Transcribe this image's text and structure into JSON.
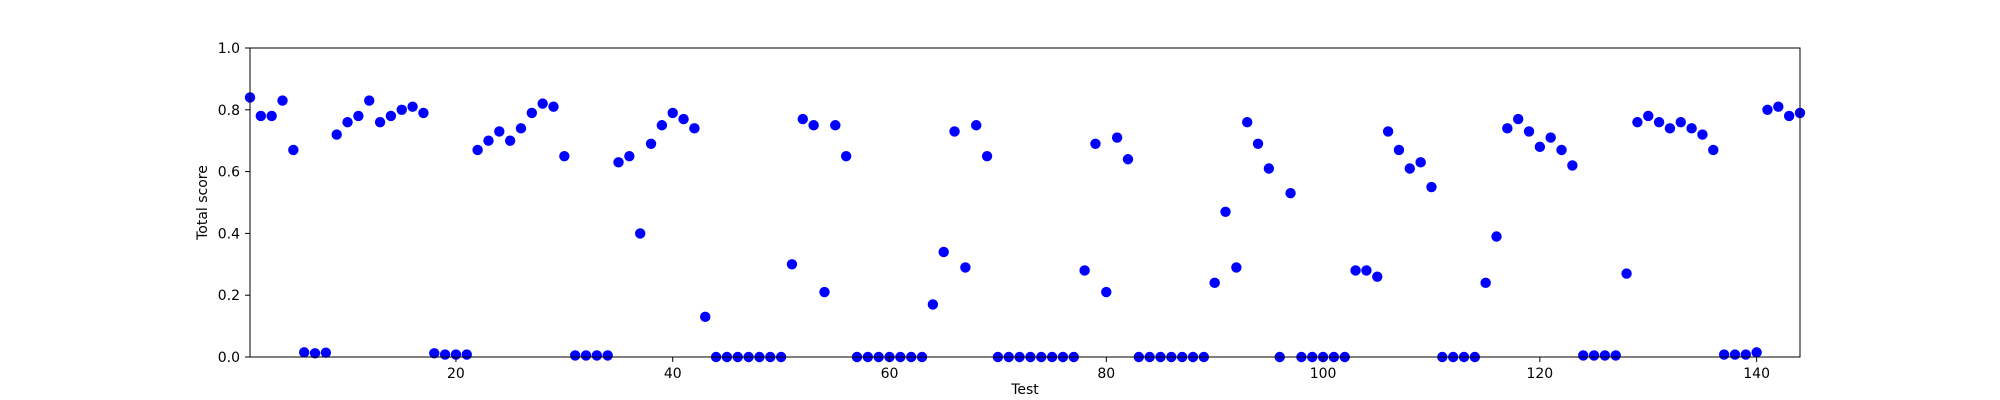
{
  "chart_data": {
    "type": "scatter",
    "title": "",
    "xlabel": "Test",
    "ylabel": "Total score",
    "xlim": [
      1,
      144
    ],
    "ylim": [
      0.0,
      1.0
    ],
    "xticks": [
      20,
      40,
      60,
      80,
      100,
      120,
      140
    ],
    "yticks": [
      0.0,
      0.2,
      0.4,
      0.6,
      0.8,
      1.0
    ],
    "xtick_labels": [
      "20",
      "40",
      "60",
      "80",
      "100",
      "120",
      "140"
    ],
    "ytick_labels": [
      "0.0",
      "0.2",
      "0.4",
      "0.6",
      "0.8",
      "1.0"
    ],
    "grid": false,
    "marker_color": "#0000ff",
    "series": [
      {
        "x": [
          1,
          2,
          3,
          4,
          5,
          6,
          7,
          8,
          9,
          10,
          11,
          12,
          13,
          14,
          15,
          16,
          17,
          18,
          19,
          20,
          21,
          22,
          23,
          24,
          25,
          26,
          27,
          28,
          29,
          30,
          31,
          32,
          33,
          34,
          35,
          36,
          37,
          38,
          39,
          40,
          41,
          42,
          43,
          44,
          45,
          46,
          47,
          48,
          49,
          50,
          51,
          52,
          53,
          54,
          55,
          56,
          57,
          58,
          59,
          60,
          61,
          62,
          63,
          64,
          65,
          66,
          67,
          68,
          69,
          70,
          71,
          72,
          73,
          74,
          75,
          76,
          77,
          78,
          79,
          80,
          81,
          82,
          83,
          84,
          85,
          86,
          87,
          88,
          89,
          90,
          91,
          92,
          93,
          94,
          95,
          96,
          97,
          98,
          99,
          100,
          101,
          102,
          103,
          104,
          105,
          106,
          107,
          108,
          109,
          110,
          111,
          112,
          113,
          114,
          115,
          116,
          117,
          118,
          119,
          120,
          121,
          122,
          123,
          124,
          125,
          126,
          127,
          128,
          129,
          130,
          131,
          132,
          133,
          134,
          135,
          136,
          137,
          138,
          139,
          140,
          141,
          142,
          143,
          144
        ],
        "y": [
          0.84,
          0.78,
          0.78,
          0.83,
          0.67,
          0.015,
          0.012,
          0.014,
          0.72,
          0.76,
          0.78,
          0.83,
          0.76,
          0.78,
          0.8,
          0.81,
          0.79,
          0.012,
          0.008,
          0.008,
          0.008,
          0.67,
          0.7,
          0.73,
          0.7,
          0.74,
          0.79,
          0.82,
          0.81,
          0.65,
          0.005,
          0.005,
          0.005,
          0.005,
          0.63,
          0.65,
          0.4,
          0.69,
          0.75,
          0.79,
          0.77,
          0.74,
          0.13,
          0.0,
          0.0,
          0.0,
          0.0,
          0.0,
          0.0,
          0.0,
          0.3,
          0.77,
          0.75,
          0.21,
          0.75,
          0.65,
          0.0,
          0.0,
          0.0,
          0.0,
          0.0,
          0.0,
          0.0,
          0.17,
          0.34,
          0.73,
          0.29,
          0.75,
          0.65,
          0.0,
          0.0,
          0.0,
          0.0,
          0.0,
          0.0,
          0.0,
          0.0,
          0.28,
          0.69,
          0.21,
          0.71,
          0.64,
          0.0,
          0.0,
          0.0,
          0.0,
          0.0,
          0.0,
          0.0,
          0.24,
          0.47,
          0.29,
          0.76,
          0.69,
          0.61,
          0.0,
          0.53,
          0.0,
          0.0,
          0.0,
          0.0,
          0.0,
          0.28,
          0.28,
          0.26,
          0.73,
          0.67,
          0.61,
          0.63,
          0.55,
          0.0,
          0.0,
          0.0,
          0.0,
          0.24,
          0.39,
          0.74,
          0.77,
          0.73,
          0.68,
          0.71,
          0.67,
          0.62,
          0.005,
          0.005,
          0.005,
          0.005,
          0.27,
          0.76,
          0.78,
          0.76,
          0.74,
          0.76,
          0.74,
          0.72,
          0.67,
          0.008,
          0.008,
          0.008,
          0.015,
          0.8,
          0.81,
          0.78,
          0.79
        ]
      }
    ]
  }
}
